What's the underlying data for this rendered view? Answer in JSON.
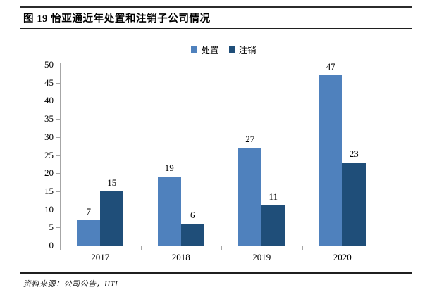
{
  "header": {
    "title": "图 19 怡亚通近年处置和注销子公司情况"
  },
  "chart_data": {
    "type": "bar",
    "title": "图 19 怡亚通近年处置和注销子公司情况",
    "categories": [
      "2017",
      "2018",
      "2019",
      "2020"
    ],
    "series": [
      {
        "name": "处置",
        "color": "#4F81BD",
        "values": [
          7,
          19,
          27,
          47
        ]
      },
      {
        "name": "注销",
        "color": "#1F4E79",
        "values": [
          15,
          6,
          11,
          23
        ]
      }
    ],
    "xlabel": "",
    "ylabel": "",
    "ylim": [
      0,
      50
    ],
    "ytick_step": 5,
    "grid": false,
    "data_labels": true,
    "legend_position": "top",
    "axis_color": "#A6A6A6"
  },
  "footer": {
    "source": "资料来源：公司公告，HTI"
  }
}
